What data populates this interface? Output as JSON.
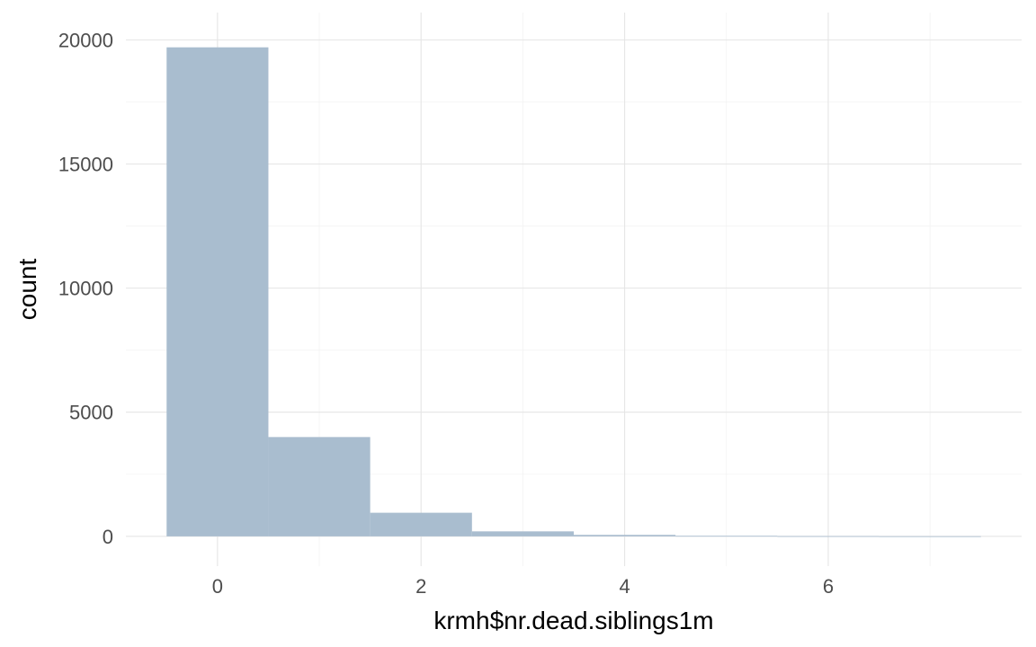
{
  "chart_data": {
    "type": "bar",
    "title": "",
    "xlabel": "krmh$nr.dead.siblings1m",
    "ylabel": "count",
    "bins": [
      {
        "x": 0,
        "count": 19700
      },
      {
        "x": 1,
        "count": 4000
      },
      {
        "x": 2,
        "count": 950
      },
      {
        "x": 3,
        "count": 200
      },
      {
        "x": 4,
        "count": 60
      },
      {
        "x": 5,
        "count": 20
      },
      {
        "x": 6,
        "count": 8
      },
      {
        "x": 7,
        "count": 3
      }
    ],
    "bin_width": 1,
    "xlim": [
      -0.9,
      7.9
    ],
    "ylim": [
      -1200,
      21100
    ],
    "x_ticks": [
      0,
      2,
      4,
      6
    ],
    "x_tick_labels": [
      "0",
      "2",
      "4",
      "6"
    ],
    "y_ticks": [
      0,
      5000,
      10000,
      15000,
      20000
    ],
    "y_tick_labels": [
      "0",
      "5000",
      "10000",
      "15000",
      "20000"
    ],
    "grid": true,
    "legend": "none",
    "colors": {
      "bar": "#a9bdcf",
      "grid_major": "#e5e5e5",
      "grid_minor": "#f1f1f1",
      "tick_text": "#4d4d4d",
      "axis_title": "#000000"
    }
  }
}
